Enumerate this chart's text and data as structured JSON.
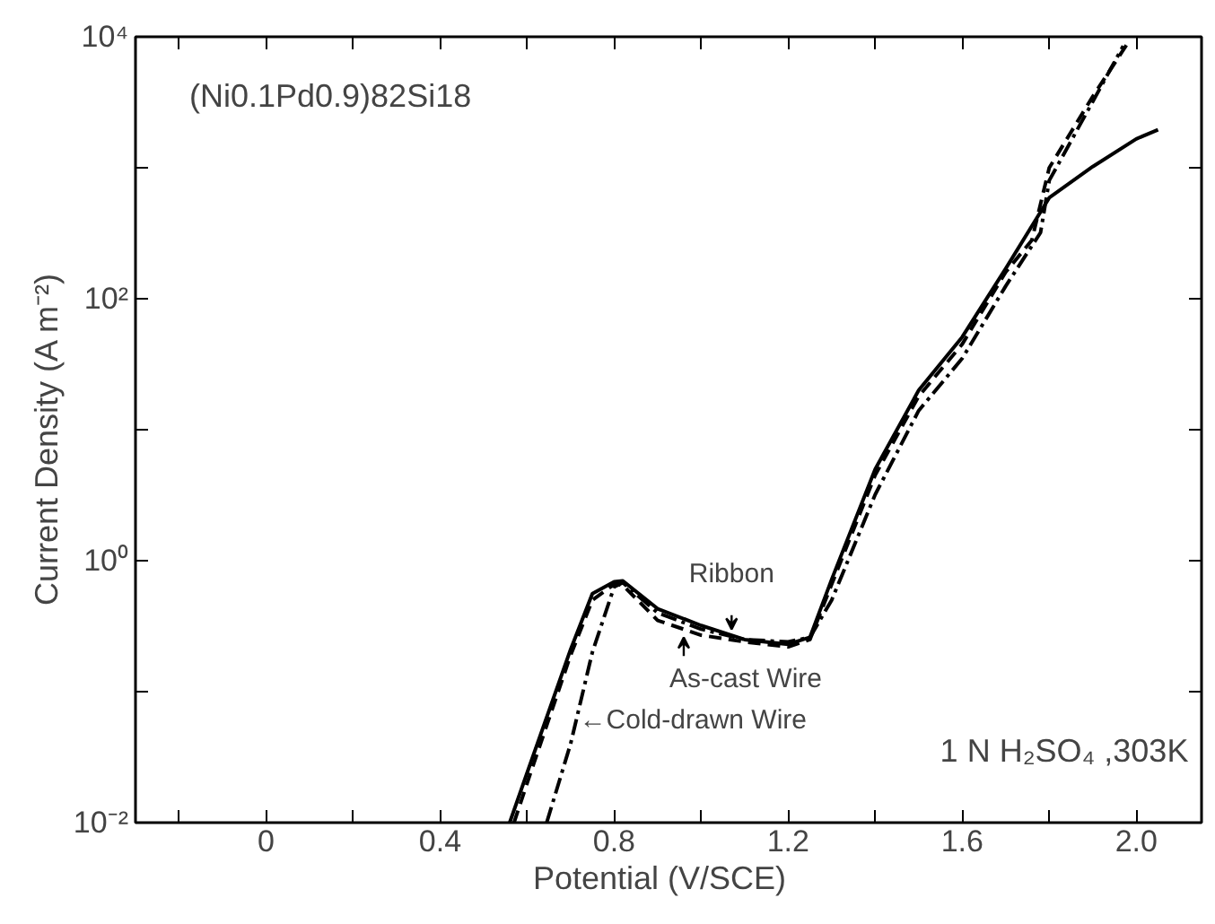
{
  "chart_data": {
    "type": "line",
    "xlabel": "Potential   (V/SCE)",
    "ylabel": "Current  Density  (A m⁻²)",
    "log": "y",
    "grid": false,
    "xlim": [
      -0.3,
      2.15
    ],
    "ylim": [
      0.01,
      10000
    ],
    "xticks": [
      {
        "value": -0.2,
        "label": null
      },
      0,
      {
        "value": 0.2,
        "label": null
      },
      0.4,
      {
        "value": 0.6,
        "label": null
      },
      0.8,
      {
        "value": 1.0,
        "label": null
      },
      1.2,
      {
        "value": 1.4,
        "label": null
      },
      1.6,
      {
        "value": 1.8,
        "label": null
      },
      {
        "value": 2.0,
        "label": "2.0"
      }
    ],
    "yticks": [
      {
        "value": 0.01,
        "label": "10⁻²"
      },
      {
        "value": 0.1,
        "label": null
      },
      {
        "value": 1,
        "label": "10⁰"
      },
      {
        "value": 10,
        "label": null
      },
      {
        "value": 100,
        "label": "10²"
      },
      {
        "value": 1000,
        "label": null
      },
      {
        "value": 10000,
        "label": "10⁴"
      }
    ],
    "series": [
      {
        "color": "#000000",
        "line_style": "solid",
        "x": [
          0.56,
          0.6,
          0.7,
          0.75,
          0.8,
          0.82,
          0.9,
          1.0,
          1.1,
          1.2,
          1.25,
          1.3,
          1.4,
          1.5,
          1.6,
          1.7,
          1.8,
          1.9,
          2.0,
          2.05
        ],
        "values": [
          0.01,
          0.024,
          0.21,
          0.56,
          0.69,
          0.7,
          0.43,
          0.32,
          0.25,
          0.23,
          0.26,
          0.72,
          5.0,
          20,
          51,
          170,
          590,
          1020,
          1660,
          1950
        ]
      },
      {
        "color": "#000000",
        "line_style": "dashed",
        "x": [
          0.57,
          0.6,
          0.7,
          0.75,
          0.8,
          0.82,
          0.9,
          1.0,
          1.1,
          1.2,
          1.25,
          1.3,
          1.4,
          1.5,
          1.6,
          1.7,
          1.76,
          1.8,
          1.9,
          1.98
        ],
        "values": [
          0.01,
          0.02,
          0.19,
          0.5,
          0.66,
          0.65,
          0.35,
          0.27,
          0.24,
          0.22,
          0.25,
          0.66,
          4.5,
          18,
          45,
          160,
          280,
          1000,
          3500,
          8900
        ]
      },
      {
        "color": "#000000",
        "line_style": "dashdot",
        "x": [
          0.645,
          0.7,
          0.75,
          0.8,
          0.82,
          0.9,
          1.0,
          1.1,
          1.2,
          1.25,
          1.3,
          1.4,
          1.5,
          1.6,
          1.7,
          1.78,
          1.8,
          1.9,
          1.97
        ],
        "values": [
          0.01,
          0.04,
          0.2,
          0.63,
          0.68,
          0.4,
          0.3,
          0.25,
          0.24,
          0.26,
          0.5,
          3.2,
          14,
          35,
          125,
          320,
          800,
          3200,
          8500
        ]
      }
    ],
    "annotations": [
      "(Ni0.1Pd0.9)82Si18",
      "1 N  H₂SO₄ ,303K",
      {
        "text": "Ribbon",
        "x": 1.07,
        "y": 0.3
      },
      {
        "text": "As-cast Wire",
        "x": 0.96,
        "y": 0.26
      },
      {
        "text": "←Cold-drawn Wire",
        "x": 0.72,
        "y": 0.06
      }
    ]
  }
}
